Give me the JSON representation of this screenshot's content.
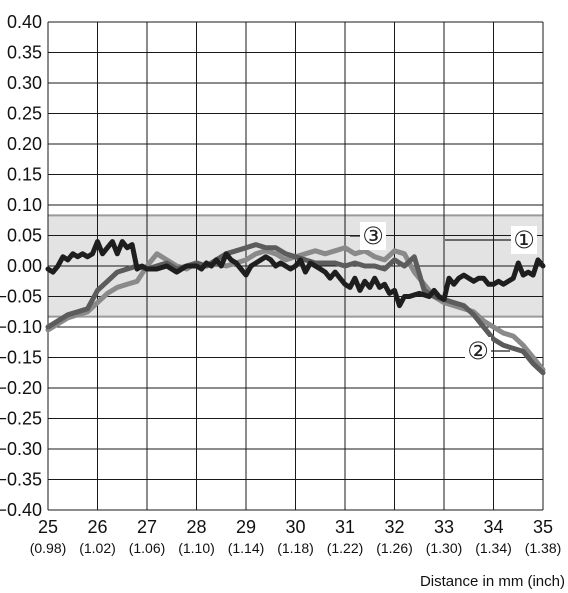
{
  "chart_data": {
    "type": "line",
    "xlabel": "Distance in mm (inch)",
    "ylabel": "",
    "xlim": [
      25,
      35
    ],
    "ylim": [
      -0.4,
      0.4
    ],
    "grid": true,
    "x_ticks": [
      "25",
      "26",
      "27",
      "28",
      "29",
      "30",
      "31",
      "32",
      "33",
      "34",
      "35"
    ],
    "x_ticks_inch": [
      "(0.98)",
      "(1.02)",
      "(1.06)",
      "(1.10)",
      "(1.14)",
      "(1.18)",
      "(1.22)",
      "(1.26)",
      "(1.30)",
      "(1.34)",
      "(1.38)"
    ],
    "y_ticks": [
      "0.40",
      "0.35",
      "0.30",
      "0.25",
      "0.20",
      "0.15",
      "0.10",
      "0.05",
      "0.00",
      "−0.05",
      "−0.10",
      "−0.15",
      "−0.20",
      "−0.25",
      "−0.30",
      "−0.35",
      "−0.40"
    ],
    "tolerance_band": [
      -0.083,
      0.083
    ],
    "colors": {
      "band": "#e3e3e3",
      "band_border": "#9a9a9a",
      "grid": "#1a1a1a"
    },
    "series": [
      {
        "label": "①",
        "color": "#1e1e1e",
        "x": [
          25.0,
          25.1,
          25.2,
          25.3,
          25.4,
          25.5,
          25.6,
          25.7,
          25.8,
          25.9,
          26.0,
          26.1,
          26.2,
          26.3,
          26.4,
          26.5,
          26.6,
          26.7,
          26.8,
          26.9,
          27.0,
          27.2,
          27.4,
          27.6,
          27.8,
          28.0,
          28.1,
          28.2,
          28.3,
          28.4,
          28.5,
          28.6,
          28.7,
          28.8,
          28.9,
          29.0,
          29.1,
          29.2,
          29.3,
          29.4,
          29.5,
          29.6,
          29.7,
          29.8,
          29.9,
          30.0,
          30.1,
          30.2,
          30.3,
          30.4,
          30.5,
          30.6,
          30.7,
          30.8,
          30.9,
          31.0,
          31.1,
          31.2,
          31.3,
          31.4,
          31.5,
          31.6,
          31.7,
          31.8,
          31.9,
          32.0,
          32.1,
          32.2,
          32.3,
          32.5,
          32.7,
          32.8,
          32.9,
          33.0,
          33.1,
          33.2,
          33.3,
          33.4,
          33.5,
          33.6,
          33.7,
          33.8,
          33.9,
          34.0,
          34.1,
          34.2,
          34.3,
          34.4,
          34.5,
          34.6,
          34.7,
          34.8,
          34.9,
          35.0
        ],
        "y": [
          -0.005,
          -0.01,
          0.0,
          0.015,
          0.01,
          0.02,
          0.015,
          0.02,
          0.015,
          0.02,
          0.04,
          0.02,
          0.03,
          0.04,
          0.02,
          0.04,
          0.03,
          0.035,
          -0.005,
          0.0,
          -0.005,
          -0.005,
          0.0,
          -0.01,
          0.0,
          0.0,
          -0.005,
          0.005,
          0.0,
          0.01,
          0.0,
          0.02,
          0.01,
          0.005,
          -0.005,
          -0.015,
          0.0,
          0.005,
          0.01,
          0.015,
          0.01,
          0.0,
          0.005,
          0.0,
          -0.005,
          0.0,
          0.01,
          -0.01,
          0.005,
          0.0,
          -0.005,
          -0.01,
          -0.02,
          -0.01,
          -0.02,
          -0.03,
          -0.035,
          -0.02,
          -0.04,
          -0.025,
          -0.035,
          -0.02,
          -0.035,
          -0.03,
          -0.045,
          -0.04,
          -0.065,
          -0.05,
          -0.05,
          -0.045,
          -0.05,
          -0.04,
          -0.05,
          -0.055,
          -0.02,
          -0.03,
          -0.02,
          -0.015,
          -0.02,
          -0.025,
          -0.02,
          -0.02,
          -0.03,
          -0.03,
          -0.025,
          -0.03,
          -0.025,
          -0.02,
          0.005,
          -0.015,
          -0.01,
          -0.015,
          0.01,
          0.0
        ]
      },
      {
        "label": "②",
        "color": "#5c5c5c",
        "x": [
          25.0,
          25.2,
          25.4,
          25.6,
          25.8,
          26.0,
          26.2,
          26.4,
          26.6,
          26.8,
          27.0,
          27.2,
          27.4,
          27.6,
          27.8,
          28.0,
          28.2,
          28.4,
          28.6,
          28.8,
          29.0,
          29.2,
          29.4,
          29.6,
          29.8,
          30.0,
          30.2,
          30.4,
          30.6,
          30.8,
          31.0,
          31.2,
          31.4,
          31.6,
          31.8,
          32.0,
          32.2,
          32.4,
          32.6,
          32.8,
          33.0,
          33.2,
          33.4,
          33.6,
          33.8,
          34.0,
          34.2,
          34.4,
          34.6,
          34.8,
          35.0
        ],
        "y": [
          -0.1,
          -0.09,
          -0.08,
          -0.075,
          -0.07,
          -0.04,
          -0.025,
          -0.01,
          -0.005,
          0.0,
          -0.005,
          0.0,
          0.005,
          -0.005,
          0.0,
          0.005,
          0.0,
          0.01,
          0.02,
          0.025,
          0.03,
          0.035,
          0.03,
          0.03,
          0.02,
          0.015,
          0.01,
          0.005,
          0.005,
          0.005,
          0.0,
          0.005,
          0.0,
          0.0,
          -0.005,
          0.01,
          0.0,
          0.015,
          -0.04,
          -0.05,
          -0.055,
          -0.06,
          -0.065,
          -0.08,
          -0.1,
          -0.12,
          -0.13,
          -0.135,
          -0.14,
          -0.16,
          -0.175
        ]
      },
      {
        "label": "③",
        "color": "#8a8a8a",
        "x": [
          25.0,
          25.2,
          25.4,
          25.6,
          25.8,
          26.0,
          26.2,
          26.4,
          26.6,
          26.8,
          27.0,
          27.2,
          27.4,
          27.6,
          27.8,
          28.0,
          28.2,
          28.4,
          28.6,
          28.8,
          29.0,
          29.2,
          29.4,
          29.6,
          29.8,
          30.0,
          30.2,
          30.4,
          30.6,
          30.8,
          31.0,
          31.2,
          31.4,
          31.6,
          31.8,
          32.0,
          32.2,
          32.4,
          32.6,
          32.8,
          33.0,
          33.2,
          33.4,
          33.6,
          33.8,
          34.0,
          34.2,
          34.4,
          34.6,
          34.8,
          35.0
        ],
        "y": [
          -0.105,
          -0.095,
          -0.085,
          -0.08,
          -0.075,
          -0.06,
          -0.045,
          -0.035,
          -0.03,
          -0.025,
          0.0,
          0.02,
          0.01,
          0.0,
          -0.005,
          0.005,
          0.0,
          0.005,
          0.0,
          0.005,
          0.01,
          0.02,
          0.025,
          0.02,
          0.01,
          0.015,
          0.02,
          0.025,
          0.02,
          0.025,
          0.03,
          0.02,
          0.025,
          0.015,
          0.01,
          0.025,
          0.02,
          -0.01,
          -0.03,
          -0.05,
          -0.06,
          -0.065,
          -0.07,
          -0.075,
          -0.09,
          -0.1,
          -0.11,
          -0.115,
          -0.13,
          -0.15,
          -0.17
        ]
      }
    ]
  }
}
